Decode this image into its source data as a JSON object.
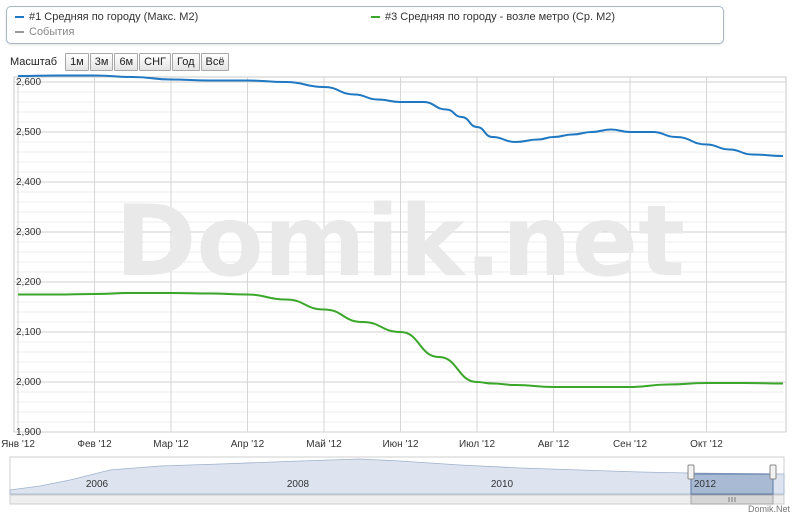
{
  "legend": {
    "items": [
      {
        "label": "#1 Средняя по городу (Макс. М2)",
        "color": "#1f78c1"
      },
      {
        "label": "#3 Средняя по городу - возле метро (Ср. М2)",
        "color": "#3aa62a"
      },
      {
        "label": "События",
        "color": "#999999"
      }
    ]
  },
  "zoom": {
    "label": "Масштаб",
    "buttons": [
      "1м",
      "3м",
      "6м",
      "СНГ",
      "Год",
      "Всё"
    ]
  },
  "watermark": "Domik.net",
  "credit": "Domik.Net",
  "navigator": {
    "labels": [
      "2006",
      "2008",
      "2010",
      "2012"
    ]
  },
  "chart_data": {
    "type": "line",
    "x_ticks": [
      "Янв '12",
      "Фев '12",
      "Мар '12",
      "Апр '12",
      "Май '12",
      "Июн '12",
      "Июл '12",
      "Авг '12",
      "Сен '12",
      "Окт '12"
    ],
    "y_ticks": [
      1900,
      2000,
      2100,
      2200,
      2300,
      2400,
      2500,
      2600
    ],
    "ylim": [
      1900,
      2610
    ],
    "grid": true,
    "series": [
      {
        "name": "#1 Средняя по городу (Макс. М2)",
        "color": "#1f78c1",
        "x": [
          0.0,
          0.5,
          1.0,
          1.5,
          2.0,
          2.5,
          3.0,
          3.5,
          4.0,
          4.4,
          4.7,
          5.0,
          5.3,
          5.6,
          5.8,
          6.0,
          6.2,
          6.5,
          6.8,
          7.0,
          7.25,
          7.5,
          7.75,
          8.0,
          8.3,
          8.6,
          9.0,
          9.3,
          9.6,
          10.0
        ],
        "values": [
          2612,
          2613,
          2613,
          2610,
          2605,
          2603,
          2603,
          2600,
          2590,
          2575,
          2565,
          2560,
          2560,
          2545,
          2530,
          2510,
          2490,
          2480,
          2485,
          2490,
          2495,
          2500,
          2505,
          2500,
          2500,
          2490,
          2475,
          2465,
          2455,
          2452
        ]
      },
      {
        "name": "#3 Средняя по городу - возле метро (Ср. М2)",
        "color": "#3aa62a",
        "x": [
          0.0,
          0.5,
          1.0,
          1.5,
          2.0,
          2.5,
          3.0,
          3.5,
          4.0,
          4.5,
          5.0,
          5.5,
          6.0,
          6.2,
          6.5,
          7.0,
          7.5,
          8.0,
          8.5,
          9.0,
          9.5,
          10.0
        ],
        "values": [
          2175,
          2175,
          2176,
          2178,
          2178,
          2177,
          2175,
          2165,
          2145,
          2120,
          2100,
          2050,
          2000,
          1997,
          1994,
          1990,
          1990,
          1990,
          1995,
          1998,
          1998,
          1997
        ]
      }
    ]
  }
}
